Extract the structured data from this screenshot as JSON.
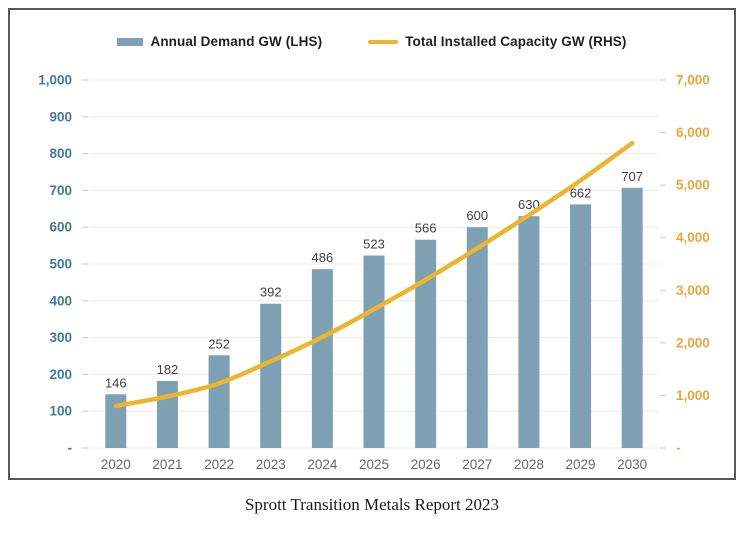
{
  "caption": "Sprott Transition Metals Report 2023",
  "legend": [
    {
      "label": "Annual Demand GW (LHS)",
      "swatch_color": "#7da0b4"
    },
    {
      "label": "Total Installed Capacity GW (RHS)",
      "swatch_color": "#edb42c"
    }
  ],
  "chart_data": {
    "type": "combo",
    "title": "",
    "categories": [
      "2020",
      "2021",
      "2022",
      "2023",
      "2024",
      "2025",
      "2026",
      "2027",
      "2028",
      "2029",
      "2030"
    ],
    "series": [
      {
        "name": "Annual Demand GW (LHS)",
        "type": "bar",
        "axis": "left",
        "color": "#7da0b4",
        "values": [
          146,
          182,
          252,
          392,
          486,
          523,
          566,
          600,
          630,
          662,
          707
        ],
        "data_labels": [
          "146",
          "182",
          "252",
          "392",
          "486",
          "523",
          "566",
          "600",
          "630",
          "662",
          "707"
        ]
      },
      {
        "name": "Total Installed Capacity GW (RHS)",
        "type": "line",
        "axis": "right",
        "color": "#edb42c",
        "values": [
          800,
          980,
          1230,
          1650,
          2110,
          2640,
          3200,
          3800,
          4430,
          5090,
          5800
        ]
      }
    ],
    "left_axis": {
      "min": 0,
      "max": 1000,
      "step": 100,
      "label_color": "#44789f",
      "zero_label": "-"
    },
    "right_axis": {
      "min": 0,
      "max": 7000,
      "step": 1000,
      "label_color": "#eaa63c",
      "zero_label": "-"
    },
    "grid": true,
    "legend_position": "top",
    "colors": {
      "gridline": "#e9e9e9",
      "tick": "#c9c9c9",
      "bar_label": "#3f3f3f",
      "x_label": "#666666",
      "border": "#58595b"
    }
  }
}
